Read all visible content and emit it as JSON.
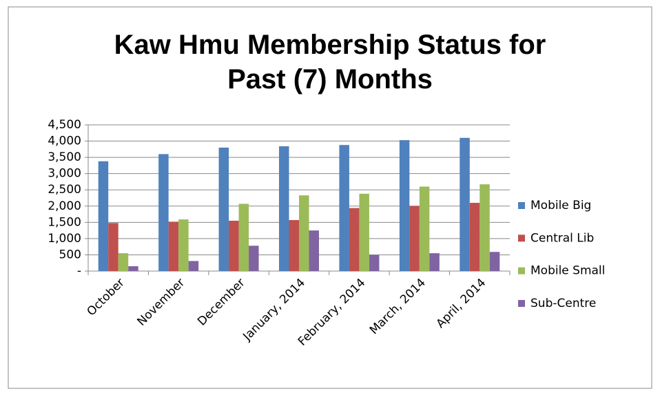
{
  "chart_data": {
    "type": "bar",
    "title": "Kaw Hmu Membership Status for Past (7) Months",
    "categories": [
      "October",
      "November",
      "December",
      "January, 2014",
      "February, 2014",
      "March, 2014",
      "April, 2014"
    ],
    "series": [
      {
        "name": "Mobile Big",
        "color": "#4f81bd",
        "values": [
          3380,
          3600,
          3800,
          3840,
          3880,
          4030,
          4100
        ]
      },
      {
        "name": "Central Lib",
        "color": "#c0504d",
        "values": [
          1480,
          1520,
          1550,
          1570,
          1940,
          2000,
          2100
        ]
      },
      {
        "name": "Mobile Small",
        "color": "#9bbb59",
        "values": [
          550,
          1590,
          2070,
          2330,
          2380,
          2600,
          2670
        ]
      },
      {
        "name": "Sub-Centre",
        "color": "#8064a2",
        "values": [
          150,
          310,
          780,
          1250,
          500,
          550,
          590
        ]
      }
    ],
    "ylim": [
      0,
      4500
    ],
    "yticks": [
      {
        "value": 0,
        "label": "-"
      },
      500,
      {
        "value": 1000,
        "label": "1,000"
      },
      {
        "value": 1500,
        "label": "1,500"
      },
      {
        "value": 2000,
        "label": "2,000"
      },
      {
        "value": 2500,
        "label": "2,500"
      },
      {
        "value": 3000,
        "label": "3,000"
      },
      {
        "value": 3500,
        "label": "3,500"
      },
      {
        "value": 4000,
        "label": "4,000"
      },
      {
        "value": 4500,
        "label": "4,500"
      }
    ],
    "grid": true,
    "legend": "right"
  }
}
